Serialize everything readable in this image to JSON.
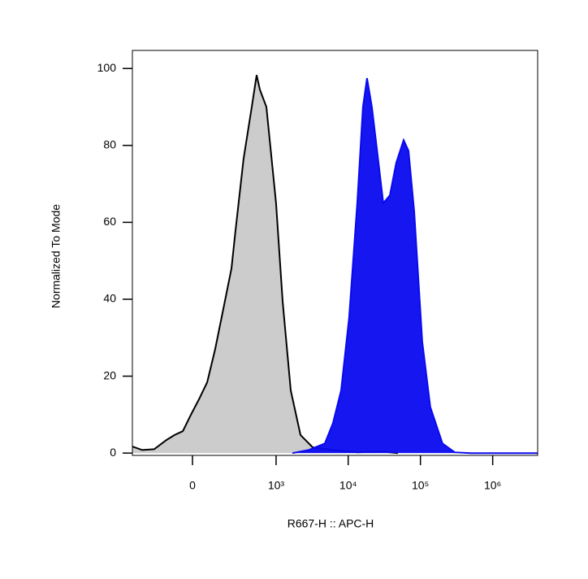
{
  "chart_data": {
    "type": "area",
    "x_label": "R667-H :: APC-H",
    "y_label": "Normalized To Mode",
    "xscale": "asinh",
    "asinh_width": 140,
    "xlim": [
      -465,
      4190000
    ],
    "xticks": [
      0,
      {
        "value": 1000,
        "label": "10³"
      },
      {
        "value": 10000,
        "label": "10⁴"
      },
      {
        "value": 100000,
        "label": "10⁵"
      },
      {
        "value": 1000000,
        "label": "10⁶"
      }
    ],
    "ylim": [
      -0.6,
      104.7
    ],
    "yticks": [
      0,
      20,
      40,
      60,
      80,
      100
    ],
    "series": [
      {
        "color": "#cccccc",
        "x": [
          -465,
          -333,
          -217,
          -130,
          -84,
          -44,
          -7,
          29,
          68,
          110,
          161,
          222,
          257,
          343,
          452,
          532,
          591,
          731,
          1000,
          1233,
          1600,
          2185,
          3220,
          6160,
          13340,
          29100,
          48700
        ],
        "values": [
          1.7,
          0.8,
          1,
          3.4,
          4.7,
          5.7,
          10,
          14,
          18.4,
          27,
          37.5,
          48,
          57.5,
          76.5,
          90,
          98.3,
          94.5,
          90,
          65,
          39.5,
          16.3,
          4.7,
          1.5,
          0.8,
          0.2,
          0.4,
          0
        ]
      },
      {
        "color": "#0a0af0",
        "x": [
          1684,
          2830,
          4750,
          6160,
          7970,
          10300,
          13340,
          16000,
          18200,
          21300,
          25500,
          30600,
          37700,
          46300,
          58500,
          68300,
          81900,
          106000,
          137000,
          202000,
          298000,
          500000,
          4190000
        ],
        "values": [
          0,
          0.8,
          2.5,
          7.8,
          16.3,
          35.3,
          65,
          90,
          97.5,
          90,
          77.6,
          65,
          67,
          75.5,
          81.4,
          78.6,
          62.8,
          29,
          12,
          2.5,
          0.2,
          0,
          0
        ]
      }
    ]
  }
}
